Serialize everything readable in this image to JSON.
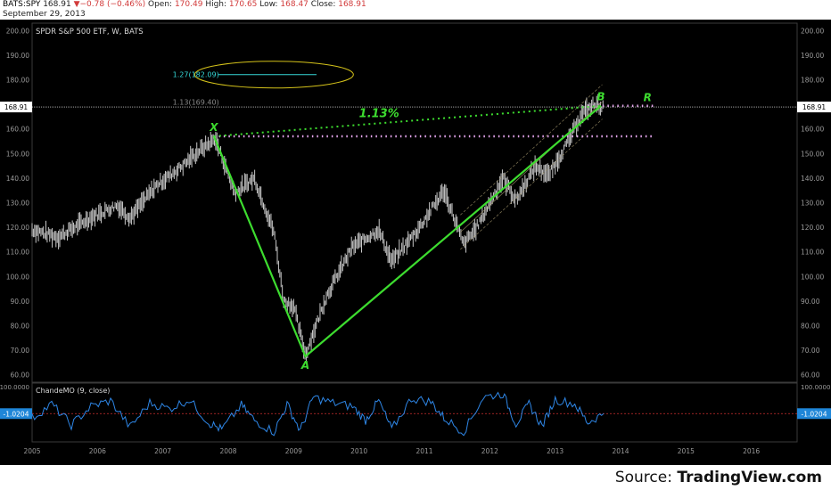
{
  "header": {
    "symbol": "BATS:SPY",
    "last": "168.91",
    "change": "▼−0.78 (−0.46%)",
    "open_label": "Open:",
    "open": "170.49",
    "high_label": "High:",
    "high": "170.65",
    "low_label": "Low:",
    "low": "168.47",
    "close_label": "Close:",
    "close": "168.91",
    "date": "September 29, 2013"
  },
  "source": {
    "prefix": "Source: ",
    "brand": "TradingView.com"
  },
  "colors": {
    "background": "#000000",
    "candles": "#c8c8c8",
    "pattern": "#3ddc2f",
    "fib_box": "#d4c21a",
    "fib_line": "#35d7d7",
    "price_line": "#ffffff",
    "level_dots": "#e6a6ee",
    "cmo_line": "#2e86e6",
    "cmo_zero": "#d03030",
    "last_badge_bg": "#1f86d8"
  },
  "chart_data": [
    {
      "type": "line",
      "title": "SPDR S&P 500 ETF, W, BATS",
      "x_ticks": [
        "2005",
        "2006",
        "2007",
        "2008",
        "2009",
        "2010",
        "2011",
        "2012",
        "2013",
        "2014",
        "2015",
        "2016"
      ],
      "y_ticks": [
        "60.00",
        "70.00",
        "80.00",
        "90.00",
        "100.00",
        "110.00",
        "120.00",
        "130.00",
        "140.00",
        "150.00",
        "160.00",
        "170.00",
        "180.00",
        "190.00",
        "200.00"
      ],
      "ylim": [
        57,
        203
      ],
      "last_price": "168.91",
      "series": [
        {
          "values": [
            [
              2005.0,
              119
            ],
            [
              2005.4,
              116
            ],
            [
              2005.9,
              124
            ],
            [
              2006.3,
              129
            ],
            [
              2006.5,
              124
            ],
            [
              2006.9,
              137
            ],
            [
              2007.3,
              145
            ],
            [
              2007.5,
              150
            ],
            [
              2007.8,
              156
            ],
            [
              2008.1,
              134
            ],
            [
              2008.4,
              140
            ],
            [
              2008.7,
              118
            ],
            [
              2008.85,
              90
            ],
            [
              2009.0,
              88
            ],
            [
              2009.18,
              68
            ],
            [
              2009.5,
              92
            ],
            [
              2009.9,
              112
            ],
            [
              2010.3,
              119
            ],
            [
              2010.5,
              106
            ],
            [
              2010.9,
              119
            ],
            [
              2011.3,
              135
            ],
            [
              2011.6,
              113
            ],
            [
              2011.8,
              120
            ],
            [
              2012.2,
              140
            ],
            [
              2012.4,
              131
            ],
            [
              2012.7,
              145
            ],
            [
              2012.9,
              141
            ],
            [
              2013.2,
              155
            ],
            [
              2013.4,
              166
            ],
            [
              2013.6,
              170
            ],
            [
              2013.74,
              168.91
            ]
          ]
        }
      ],
      "harmonic_pattern": [
        {
          "label": "X",
          "x": 2007.78,
          "y": 157
        },
        {
          "label": "A",
          "x": 2009.18,
          "y": 67.5
        },
        {
          "label": "B",
          "x": 2013.7,
          "y": 169.4
        }
      ],
      "pattern_ratio": "1.13%",
      "levels": [
        {
          "label": "1.13(169.40)",
          "value": 169.4
        },
        {
          "label": "1.27(182.09)",
          "value": 182.09
        }
      ],
      "projection_label": "R"
    },
    {
      "type": "line",
      "title": "ChandeMO (9, close)",
      "y_ticks": [
        "100.0000"
      ],
      "ylim": [
        -100,
        100
      ],
      "last_value": "-1.0204",
      "series": [
        {
          "values": [
            [
              2005.0,
              -20
            ],
            [
              2005.3,
              40
            ],
            [
              2005.6,
              -50
            ],
            [
              2005.9,
              30
            ],
            [
              2006.2,
              55
            ],
            [
              2006.5,
              -60
            ],
            [
              2006.8,
              45
            ],
            [
              2007.1,
              20
            ],
            [
              2007.4,
              60
            ],
            [
              2007.7,
              -40
            ],
            [
              2007.9,
              -70
            ],
            [
              2008.2,
              35
            ],
            [
              2008.4,
              -30
            ],
            [
              2008.7,
              -80
            ],
            [
              2008.9,
              40
            ],
            [
              2009.1,
              -75
            ],
            [
              2009.3,
              70
            ],
            [
              2009.6,
              45
            ],
            [
              2009.9,
              30
            ],
            [
              2010.1,
              -30
            ],
            [
              2010.3,
              55
            ],
            [
              2010.5,
              -70
            ],
            [
              2010.8,
              65
            ],
            [
              2011.1,
              50
            ],
            [
              2011.3,
              -20
            ],
            [
              2011.6,
              -80
            ],
            [
              2011.9,
              70
            ],
            [
              2012.2,
              85
            ],
            [
              2012.4,
              -45
            ],
            [
              2012.6,
              40
            ],
            [
              2012.8,
              -55
            ],
            [
              2013.0,
              60
            ],
            [
              2013.3,
              40
            ],
            [
              2013.5,
              -40
            ],
            [
              2013.74,
              -1.0204
            ]
          ]
        }
      ]
    }
  ]
}
